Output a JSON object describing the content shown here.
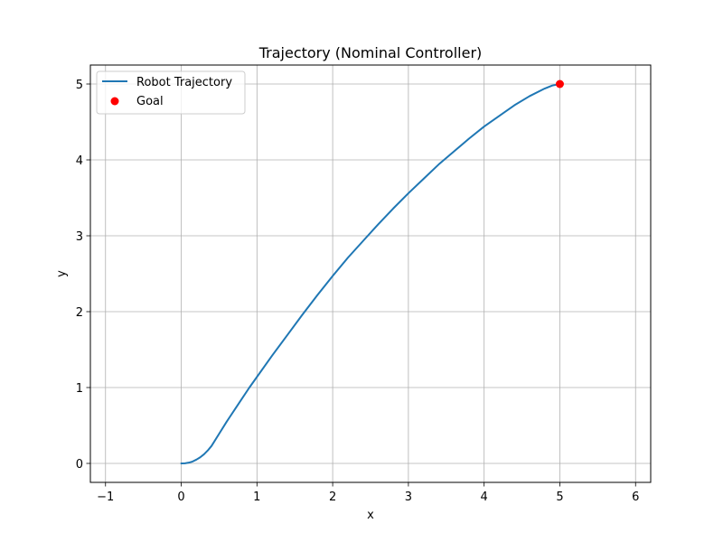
{
  "chart_data": {
    "type": "line",
    "title": "Trajectory (Nominal Controller)",
    "xlabel": "x",
    "ylabel": "y",
    "xlim": [
      -1.2,
      6.2
    ],
    "ylim": [
      -0.25,
      5.25
    ],
    "x_ticks": [
      -1,
      0,
      1,
      2,
      3,
      4,
      5,
      6
    ],
    "y_ticks": [
      0,
      1,
      2,
      3,
      4,
      5
    ],
    "x_tick_labels": [
      "−1",
      "0",
      "1",
      "2",
      "3",
      "4",
      "5",
      "6"
    ],
    "y_tick_labels": [
      "0",
      "1",
      "2",
      "3",
      "4",
      "5"
    ],
    "grid": true,
    "legend_position": "top-left",
    "series": [
      {
        "name": "Robot Trajectory",
        "kind": "line",
        "color": "#1f77b4",
        "points": [
          [
            0,
            0
          ],
          [
            0.05,
            0.002
          ],
          [
            0.1,
            0.01
          ],
          [
            0.15,
            0.025
          ],
          [
            0.2,
            0.05
          ],
          [
            0.25,
            0.08
          ],
          [
            0.3,
            0.12
          ],
          [
            0.35,
            0.17
          ],
          [
            0.4,
            0.23
          ],
          [
            0.5,
            0.39
          ],
          [
            0.6,
            0.55
          ],
          [
            0.7,
            0.7
          ],
          [
            0.8,
            0.85
          ],
          [
            0.9,
            1.0
          ],
          [
            1.0,
            1.14
          ],
          [
            1.2,
            1.42
          ],
          [
            1.4,
            1.69
          ],
          [
            1.6,
            1.96
          ],
          [
            1.8,
            2.22
          ],
          [
            2.0,
            2.47
          ],
          [
            2.2,
            2.71
          ],
          [
            2.4,
            2.93
          ],
          [
            2.6,
            3.15
          ],
          [
            2.8,
            3.36
          ],
          [
            3.0,
            3.56
          ],
          [
            3.2,
            3.75
          ],
          [
            3.4,
            3.94
          ],
          [
            3.6,
            4.11
          ],
          [
            3.8,
            4.28
          ],
          [
            4.0,
            4.44
          ],
          [
            4.2,
            4.58
          ],
          [
            4.4,
            4.72
          ],
          [
            4.6,
            4.84
          ],
          [
            4.8,
            4.94
          ],
          [
            4.9,
            4.98
          ],
          [
            5.0,
            5.0
          ]
        ]
      },
      {
        "name": "Goal",
        "kind": "scatter",
        "color": "#ff0000",
        "points": [
          [
            5,
            5
          ]
        ]
      }
    ]
  }
}
